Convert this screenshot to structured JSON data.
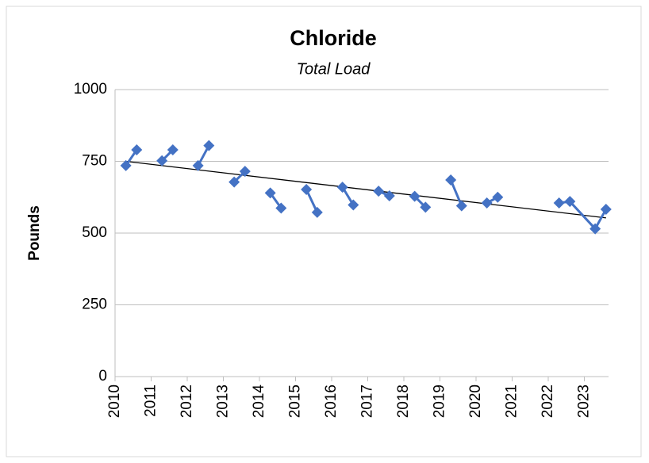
{
  "chart_data": {
    "type": "line",
    "title": "Chloride",
    "subtitle": "Total Load",
    "y_label": "Pounds",
    "xlim": [
      2010,
      2023.67
    ],
    "xticks": [
      2010,
      2011,
      2012,
      2013,
      2014,
      2015,
      2016,
      2017,
      2018,
      2019,
      2020,
      2021,
      2022,
      2023
    ],
    "ylim": [
      0,
      1000
    ],
    "yticks": [
      0,
      250,
      500,
      750,
      1000
    ],
    "grid": true,
    "series": [
      {
        "color": "#4472c4",
        "x": [
          2010.3,
          2010.6,
          null,
          2011.3,
          2011.6,
          null,
          2012.3,
          2012.6,
          null,
          2013.3,
          2013.6,
          null,
          2014.3,
          2014.6,
          null,
          2015.3,
          2015.6,
          null,
          2016.3,
          2016.6,
          null,
          2017.3,
          2017.6,
          null,
          2018.3,
          2018.6,
          null,
          2019.3,
          2019.6,
          null,
          2020.3,
          2020.6,
          null,
          2022.3,
          2022.6,
          2023.3,
          2023.6
        ],
        "values": [
          735,
          790,
          null,
          752,
          790,
          null,
          735,
          805,
          null,
          678,
          715,
          null,
          640,
          587,
          null,
          652,
          572,
          null,
          660,
          598,
          null,
          646,
          630,
          null,
          628,
          590,
          null,
          685,
          595,
          null,
          605,
          625,
          null,
          605,
          610,
          515,
          583
        ]
      }
    ],
    "trendline": {
      "color": "#000000",
      "x": [
        2010.3,
        2023.6
      ],
      "values": [
        750,
        553
      ]
    }
  }
}
